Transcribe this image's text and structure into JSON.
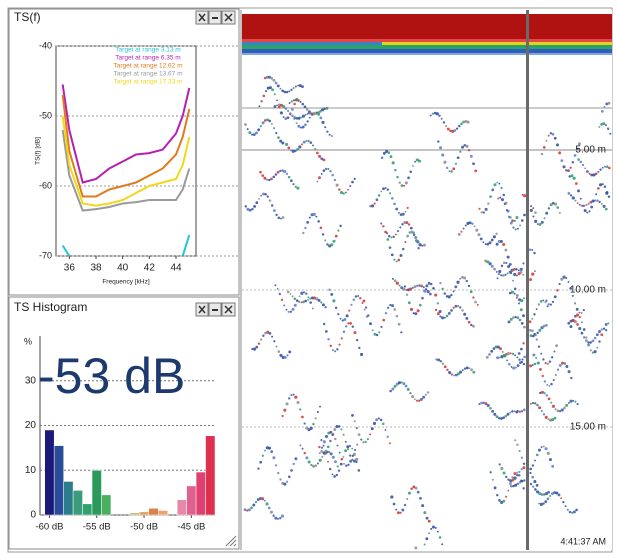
{
  "chart_data": [
    {
      "type": "line",
      "title": "TS(f)",
      "x_label": "Frequency [kHz]",
      "y_label": "TS(f) [dB]",
      "x": [
        35.5,
        36,
        37,
        38,
        39,
        40,
        41,
        42,
        43,
        44,
        44.5,
        45
      ],
      "series": [
        {
          "name": "Target at range 3.13 m",
          "color": "#22c4d4",
          "values": [
            -68.5,
            -70,
            null,
            null,
            null,
            null,
            null,
            null,
            null,
            null,
            -70,
            -67
          ]
        },
        {
          "name": "Target at range 6.35 m",
          "color": "#b61fb0",
          "values": [
            -45.5,
            -52,
            -59.5,
            -59,
            -57.5,
            -56.5,
            -55.5,
            -55.3,
            -54.8,
            -52.5,
            -50,
            -46
          ]
        },
        {
          "name": "Target at range 12.62 m",
          "color": "#e07a1e",
          "values": [
            -47,
            -55,
            -61.5,
            -61.5,
            -60.5,
            -60,
            -59.5,
            -58.5,
            -57.5,
            -55.5,
            -53,
            -49
          ]
        },
        {
          "name": "Target at range 13.67 m",
          "color": "#9a9a9a",
          "values": [
            -52,
            -58.5,
            -63.5,
            -63.3,
            -63,
            -62.5,
            -62.3,
            -62,
            -62,
            -62,
            -60.5,
            -57.5
          ]
        },
        {
          "name": "Target at range 17.33 m",
          "color": "#f2d81c",
          "values": [
            -50,
            -57,
            -62.5,
            -62.8,
            -62.5,
            -62,
            -61,
            -60,
            -59.5,
            -59,
            -57,
            -53
          ]
        }
      ],
      "xlim": [
        35,
        45.5
      ],
      "xticks": [
        36,
        38,
        40,
        42,
        44
      ],
      "ylim": [
        -70,
        -40
      ],
      "yticks": [
        -40,
        -50,
        -60,
        -70
      ],
      "grid": true
    },
    {
      "type": "histogram",
      "title": "TS Histogram",
      "y_label": "%",
      "annotation": "-53 dB",
      "bins": [
        -60.5,
        -59.5,
        -58.5,
        -57.5,
        -56.5,
        -55.5,
        -54.5,
        -53.5,
        -52.5,
        -51.5,
        -50.5,
        -49.5,
        -48.5,
        -47.5,
        -46.5,
        -45.5,
        -44.5,
        -43.5,
        -42.5
      ],
      "counts": [
        19,
        15.5,
        7.5,
        5.5,
        2.5,
        10,
        4.5,
        0,
        0,
        0.5,
        0.7,
        1.5,
        1,
        0,
        3.4,
        6.5,
        9.6,
        17.7
      ],
      "colors": [
        "#1c1a78",
        "#2b4c99",
        "#2b7d8c",
        "#3a9c7a",
        "#2fa06e",
        "#2a9a5a",
        "#4ab060",
        "#cccccc",
        "#cccccc",
        "#c8c080",
        "#e0a060",
        "#e08040",
        "#f0a070",
        "#cccccc",
        "#e888a8",
        "#e06090",
        "#e04070",
        "#e03050"
      ],
      "xlim": [
        -61,
        -42.5
      ],
      "xticks": [
        {
          "value": -60,
          "label": "-60 dB"
        },
        {
          "value": -55,
          "label": "-55 dB"
        },
        {
          "value": -50,
          "label": "-50 dB"
        },
        {
          "value": -45,
          "label": "-45 dB"
        }
      ],
      "ylim": [
        0,
        40
      ],
      "yticks": [
        0,
        10,
        20,
        30
      ],
      "grid": true
    }
  ],
  "echogram": {
    "depth_labels": [
      "5.00 m",
      "10.00 m",
      "15.00 m"
    ],
    "time": "4:41:37 AM"
  }
}
